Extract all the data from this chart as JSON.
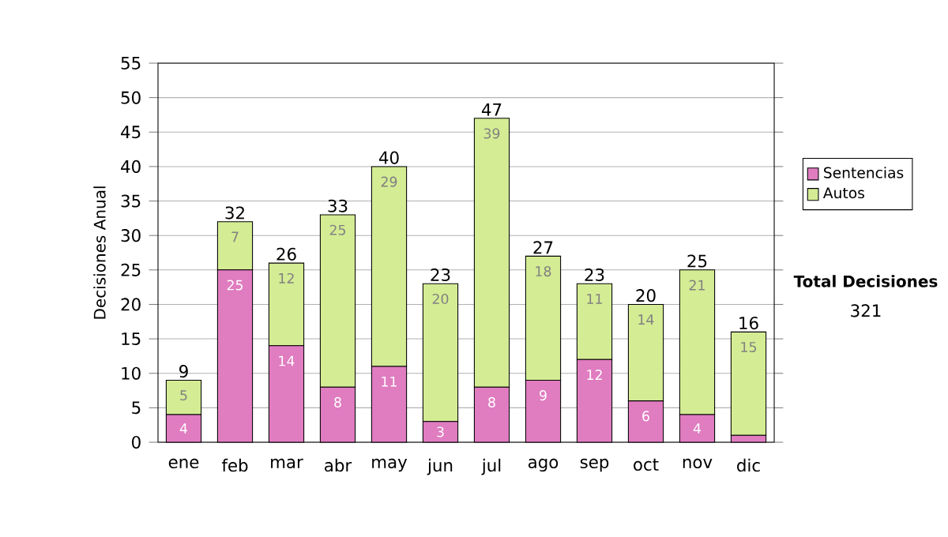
{
  "chart_data": {
    "type": "bar",
    "stacked": true,
    "ylabel": "Decisiones Anual",
    "categories": [
      "ene",
      "feb",
      "mar",
      "abr",
      "may",
      "jun",
      "jul",
      "ago",
      "sep",
      "oct",
      "nov",
      "dic"
    ],
    "series": [
      {
        "name": "Sentencias",
        "color": "#e07cc0",
        "values": [
          4,
          25,
          14,
          8,
          11,
          3,
          8,
          9,
          12,
          6,
          4,
          1
        ],
        "value_labels": [
          "4",
          "25",
          "14",
          "8",
          "11",
          "3",
          "8",
          "9",
          "12",
          "6",
          "4",
          null
        ]
      },
      {
        "name": "Autos",
        "color": "#d4ec94",
        "values": [
          5,
          7,
          12,
          25,
          29,
          20,
          39,
          18,
          11,
          14,
          21,
          15
        ],
        "value_labels": [
          "5",
          "7",
          "12",
          "25",
          "29",
          "20",
          "39",
          "18",
          "11",
          "14",
          "21",
          "15"
        ]
      }
    ],
    "totals": [
      "9",
      "32",
      "26",
      "33",
      "40",
      "23",
      "47",
      "27",
      "23",
      "20",
      "25",
      "16"
    ],
    "ylim": [
      0,
      55
    ],
    "yticks": [
      0,
      5,
      10,
      15,
      20,
      25,
      30,
      35,
      40,
      45,
      50,
      55
    ],
    "grid": "y",
    "legend": "right",
    "annotations": [
      "Total Decisiones",
      "321"
    ]
  }
}
